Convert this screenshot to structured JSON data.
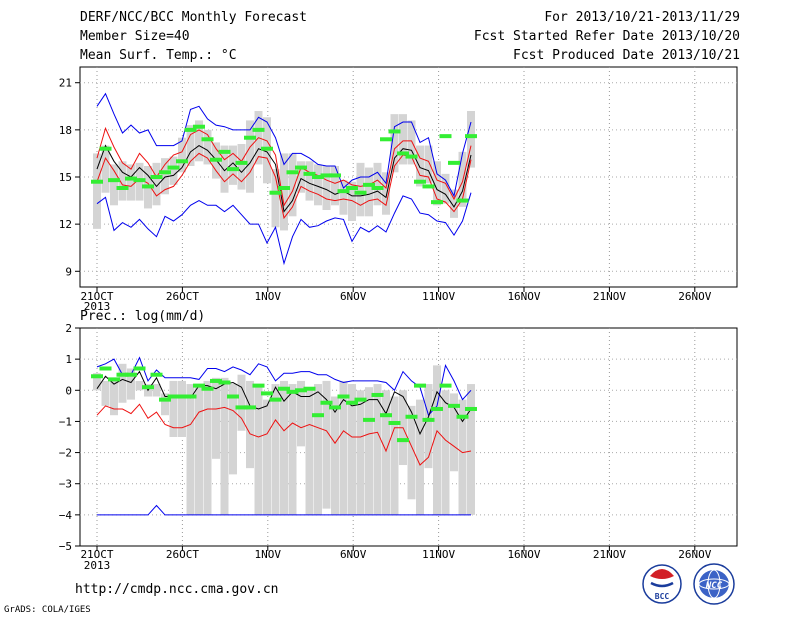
{
  "header": {
    "title": "DERF/NCC/BCC Monthly Forecast",
    "member_size": "Member Size=40",
    "variable": "Mean Surf. Temp.: °C",
    "period": "For 2013/10/21-2013/11/29",
    "started": "Fcst Started Refer Date 2013/10/20",
    "produced": "Fcst Produced Date 2013/10/21"
  },
  "plot2_label": "Prec.: log(mm/d)",
  "footer": {
    "url": "http://cmdp.ncc.cma.gov.cn",
    "credit": "GrADS: COLA/IGES"
  },
  "logos": {
    "bcc_text": "BCC",
    "ncc_text": "NCC"
  },
  "colors": {
    "box": "#d4d4d4",
    "median": "#33ee33",
    "mean": "#000000",
    "spread": "#ee1111",
    "extreme": "#0000ee"
  },
  "chart_data": [
    {
      "type": "line",
      "variable": "Mean Surf. Temp.: °C",
      "ylim": [
        8,
        22
      ],
      "yticks": [
        "21",
        "18",
        "15",
        "12",
        "9"
      ],
      "xlabels": [
        "21OCT",
        "26OCT",
        "1NOV",
        "6NOV",
        "11NOV",
        "16NOV",
        "21NOV",
        "26NOV"
      ],
      "xlabel_sub": "2013",
      "series": [
        {
          "role": "max",
          "values": [
            19.5,
            20.3,
            19,
            17.8,
            18.3,
            17.8,
            18,
            17,
            17,
            17,
            17.3,
            19.3,
            19.5,
            18.7,
            18.3,
            18.2,
            18,
            18,
            18,
            18.8,
            18.5,
            17.5,
            15.8,
            16.5,
            16.5,
            16.2,
            15.8,
            15.7,
            15.7,
            14.3,
            14.8,
            15,
            15,
            15.3,
            14.6,
            18.2,
            18.5,
            18.5,
            17.2,
            17.5,
            15.2,
            14.8,
            13.8,
            16.5,
            18.5
          ]
        },
        {
          "role": "upper",
          "values": [
            16.2,
            18.1,
            16.9,
            15.9,
            15.5,
            16.5,
            15.9,
            15,
            15.8,
            16.4,
            16.6,
            17.7,
            18,
            17.7,
            16.8,
            16.1,
            16.5,
            16,
            16.9,
            17.5,
            17.3,
            16.4,
            13.2,
            14.1,
            15.6,
            15.3,
            15.1,
            14.8,
            14.6,
            14.8,
            14.5,
            14.4,
            14.5,
            14.8,
            14.3,
            16.8,
            17.3,
            17.3,
            16.2,
            16,
            14.8,
            14.6,
            13.6,
            14.7,
            17
          ]
        },
        {
          "role": "mean",
          "values": [
            15.5,
            17,
            16,
            15.3,
            15,
            15.6,
            15.1,
            14.4,
            15,
            15.1,
            15.6,
            16.6,
            17,
            16.7,
            16.1,
            15.4,
            15.9,
            15.3,
            15.9,
            16.8,
            16.6,
            15.8,
            12.8,
            13.5,
            14.9,
            14.6,
            14.4,
            14.2,
            13.9,
            14.1,
            13.8,
            13.8,
            13.9,
            14.1,
            13.7,
            16.2,
            16.8,
            16.7,
            15.6,
            15.4,
            14.2,
            13.9,
            13.1,
            14.1,
            16.4
          ]
        },
        {
          "role": "lower",
          "values": [
            14.7,
            16.2,
            15.4,
            14.5,
            14.4,
            14.9,
            14.6,
            13.8,
            14.2,
            14.4,
            15.1,
            16,
            16.5,
            16.2,
            15.4,
            14.7,
            15.2,
            14.7,
            15.3,
            16.3,
            16.2,
            15,
            12.4,
            13.1,
            14.4,
            14.1,
            13.9,
            13.6,
            13.5,
            13.6,
            13.5,
            13.2,
            13.5,
            13.6,
            13.2,
            15.7,
            16.4,
            16.3,
            15.1,
            15,
            13.6,
            13.4,
            12.8,
            13.6,
            16.1
          ]
        },
        {
          "role": "min",
          "values": [
            13.3,
            13.7,
            11.6,
            12.1,
            11.8,
            12.3,
            11.7,
            11.2,
            12.5,
            12.2,
            12.6,
            13.2,
            13.5,
            13.2,
            13.2,
            12.8,
            13.2,
            12.6,
            12,
            12,
            10.8,
            11.8,
            9.5,
            11.2,
            12.3,
            11.8,
            11.9,
            12.2,
            12.4,
            12.3,
            10.9,
            11.8,
            11.5,
            11.9,
            11.5,
            12.7,
            13.8,
            13.6,
            12.7,
            12.6,
            12.2,
            12.1,
            11.3,
            12.2,
            14
          ]
        },
        {
          "role": "median",
          "values": [
            14.7,
            16.8,
            14.8,
            14.3,
            14.9,
            14.8,
            14.4,
            15,
            15.3,
            15.6,
            16,
            18,
            18.2,
            17.4,
            16.1,
            16.6,
            15.5,
            15.9,
            17.5,
            18,
            16.8,
            14,
            14.3,
            15.3,
            15.6,
            15.2,
            15,
            15.1,
            15.1,
            14.1,
            14.3,
            14,
            14.5,
            14.3,
            17.4,
            17.9,
            16.5,
            16.3,
            14.7,
            14.4,
            13.4,
            17.6,
            15.9,
            13.5,
            17.6
          ]
        },
        {
          "role": "box_top",
          "values": [
            16.5,
            17,
            15.8,
            16,
            15.8,
            15.9,
            15.7,
            15.9,
            16.2,
            16.3,
            17.5,
            18.3,
            18.6,
            18,
            17.2,
            17,
            17,
            17.1,
            18.6,
            19.2,
            18.8,
            15.5,
            16.5,
            16.5,
            16,
            16,
            15.8,
            15.7,
            15.7,
            14.8,
            14.7,
            15.9,
            15.6,
            15.9,
            15.3,
            19,
            19,
            18.6,
            17,
            17,
            16,
            15.2,
            14.2,
            16.6,
            19.2
          ]
        },
        {
          "role": "box_bottom",
          "values": [
            11.7,
            14,
            13.2,
            13.5,
            13.5,
            13.5,
            13,
            13.2,
            13.9,
            14.5,
            15.3,
            15.7,
            16,
            15.8,
            14.9,
            14,
            14.5,
            14.2,
            14,
            15.8,
            14.6,
            11.8,
            11.6,
            12.5,
            14,
            13.5,
            13.2,
            12.9,
            13.2,
            12.6,
            12.2,
            12.5,
            12.5,
            13.2,
            12.6,
            15.3,
            15.8,
            15.8,
            14.4,
            14.6,
            13.2,
            13.3,
            12.4,
            13.1,
            15.6
          ]
        }
      ]
    },
    {
      "type": "line",
      "variable": "Prec.: log(mm/d)",
      "ylim": [
        -5,
        2
      ],
      "yticks": [
        "2",
        "1",
        "0",
        "−1",
        "−2",
        "−3",
        "−4",
        "−5"
      ],
      "xlabels": [
        "21OCT",
        "26OCT",
        "1NOV",
        "6NOV",
        "11NOV",
        "16NOV",
        "21NOV",
        "26NOV"
      ],
      "xlabel_sub": "2013",
      "series": [
        {
          "role": "max",
          "values": [
            0.75,
            0.85,
            1,
            0.5,
            0.5,
            1.05,
            0.3,
            0.65,
            0.4,
            0.4,
            0.4,
            0.4,
            0.35,
            0.7,
            0.7,
            0.6,
            0.75,
            0.65,
            0.5,
            0.85,
            0.75,
            0.3,
            0.55,
            0.55,
            0.6,
            0.6,
            0.5,
            0.5,
            0.35,
            0.25,
            0.3,
            0.3,
            0.3,
            0.3,
            0.25,
            0,
            0.6,
            0.3,
            0.1,
            -0.8,
            -0.5,
            0.8,
            0.3,
            -0.3,
            0
          ]
        },
        {
          "role": "mean",
          "values": [
            0.05,
            0.45,
            0.2,
            0.35,
            0.25,
            0.6,
            0,
            0.4,
            -0.2,
            -0.2,
            -0.2,
            -0.25,
            0.15,
            0.15,
            0.05,
            0.2,
            0.25,
            0.1,
            -0.5,
            -0.6,
            -0.5,
            0.1,
            -0.35,
            -0.05,
            -0.2,
            -0.2,
            -0.05,
            -0.3,
            -0.7,
            -0.3,
            -0.5,
            -0.45,
            -0.3,
            -0.3,
            -0.75,
            -0.05,
            -0.2,
            -0.7,
            -1.4,
            -0.85,
            -0.05,
            -0.4,
            -0.55,
            -1,
            -0.6
          ]
        },
        {
          "role": "lower",
          "values": [
            -0.8,
            -0.5,
            -0.6,
            -0.6,
            -0.75,
            -0.45,
            -0.9,
            -0.7,
            -1.1,
            -1.2,
            -1.2,
            -1.1,
            -0.7,
            -0.6,
            -0.6,
            -0.55,
            -0.65,
            -0.9,
            -1.4,
            -1.5,
            -1.4,
            -0.95,
            -1.3,
            -1.05,
            -1.2,
            -1.1,
            -1.2,
            -1.3,
            -1.7,
            -1.3,
            -1.5,
            -1.5,
            -1.4,
            -1.35,
            -1.95,
            -1.2,
            -1.2,
            -1.8,
            -2.4,
            -2.15,
            -1.3,
            -1.6,
            -1.8,
            -2,
            -1.95
          ]
        },
        {
          "role": "min",
          "values": [
            -4,
            -4,
            -4,
            -4,
            -4,
            -4,
            -4,
            -3.7,
            -4,
            -4,
            -4,
            -4,
            -4,
            -4,
            -4,
            -4,
            -4,
            -4,
            -4,
            -4,
            -4,
            -4,
            -4,
            -4,
            -4,
            -4,
            -4,
            -4,
            -4,
            -4,
            -4,
            -4,
            -4,
            -4,
            -4,
            -4,
            -4,
            -4,
            -4,
            -4,
            -4,
            -4,
            -4,
            -4,
            -4
          ]
        },
        {
          "role": "median",
          "values": [
            0.45,
            0.7,
            0.35,
            0.5,
            0.5,
            0.7,
            0.1,
            0.5,
            -0.3,
            -0.2,
            -0.2,
            -0.2,
            0.15,
            0.05,
            0.3,
            0.25,
            -0.2,
            -0.55,
            -0.55,
            0.15,
            -0.1,
            -0.3,
            0.05,
            -0.05,
            0,
            0.05,
            -0.8,
            -0.4,
            -0.55,
            -0.2,
            -0.4,
            -0.3,
            -0.95,
            -0.15,
            -0.8,
            -1.05,
            -1.6,
            -0.85,
            0.15,
            -0.95,
            -0.6,
            0.15,
            -0.5,
            -0.85,
            -0.6
          ]
        },
        {
          "role": "box_top",
          "values": [
            0.55,
            0.3,
            0.3,
            0.85,
            0.7,
            0.3,
            0.2,
            0.2,
            -0.1,
            0.3,
            0.3,
            0.2,
            0.1,
            0.3,
            0.4,
            0.4,
            0.2,
            0.5,
            0.3,
            0.1,
            -0.3,
            0.2,
            0.3,
            0.2,
            0.3,
            0,
            0.2,
            0.3,
            -0.2,
            0.3,
            0.2,
            0,
            0.1,
            0.2,
            0,
            -0.2,
            0,
            -0.5,
            -0.3,
            0.2,
            0.8,
            0,
            -0.1,
            -0.3,
            0.2
          ]
        },
        {
          "role": "box_bottom",
          "values": [
            0,
            -0.5,
            -0.8,
            -0.4,
            -0.3,
            0,
            -0.2,
            -0.2,
            -0.8,
            -1.5,
            -1.5,
            -4,
            -4,
            -4,
            -2.2,
            -4,
            -2.7,
            -1.3,
            -2.5,
            -4,
            -4,
            -4,
            -4,
            -4,
            -1.8,
            -4,
            -4,
            -3.8,
            -4,
            -4,
            -4,
            -4,
            -4,
            -4,
            -4,
            -4,
            -2.4,
            -3.5,
            -4,
            -2.5,
            -4,
            -4,
            -2.6,
            -4,
            -4
          ]
        }
      ]
    }
  ]
}
